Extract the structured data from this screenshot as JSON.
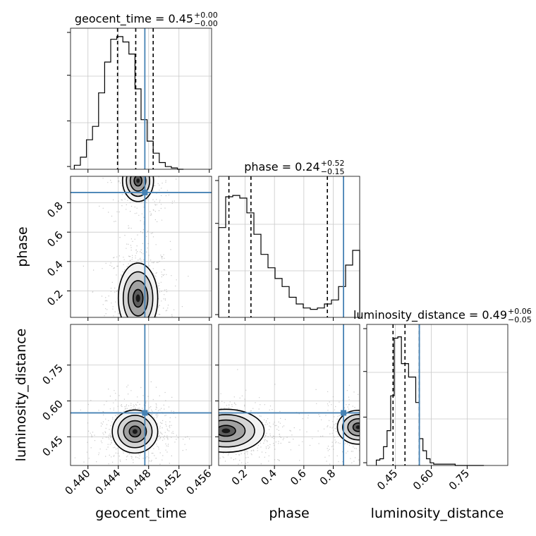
{
  "chart_data": {
    "type": "corner",
    "parameters": [
      "geocent_time",
      "phase",
      "luminosity_distance"
    ],
    "truths": {
      "geocent_time": 0.4475,
      "phase": 0.87,
      "luminosity_distance": 0.55
    },
    "colors": {
      "truth": "#4682b4",
      "hist": "#000000",
      "grid": "#c8c8c8",
      "frame": "#000000"
    },
    "titles": [
      {
        "param": "geocent_time",
        "label": "geocent_time = 0.45",
        "plus": "+0.00",
        "minus": "−0.00"
      },
      {
        "param": "phase",
        "label": "phase = 0.24",
        "plus": "+0.52",
        "minus": "−0.15"
      },
      {
        "param": "luminosity_distance",
        "label": "luminosity_distance = 0.49",
        "plus": "+0.06",
        "minus": "−0.05"
      }
    ],
    "axes": {
      "geocent_time": {
        "xlabel": "geocent_time",
        "range": [
          0.4377,
          0.4563
        ],
        "ticks": [
          0.44,
          0.444,
          0.448,
          0.452,
          0.456
        ],
        "tick_labels": [
          "0.440",
          "0.444",
          "0.448",
          "0.452",
          "0.456"
        ]
      },
      "phase": {
        "xlabel": "phase",
        "ylabel": "phase",
        "range": [
          0.02,
          0.98
        ],
        "ticks": [
          0.2,
          0.4,
          0.6,
          0.8
        ],
        "tick_labels": [
          "0.2",
          "0.4",
          "0.6",
          "0.8"
        ]
      },
      "luminosity_distance": {
        "xlabel": "luminosity_distance",
        "ylabel": "luminosity_distance",
        "range": [
          0.33,
          0.92
        ],
        "ticks": [
          0.45,
          0.6,
          0.75
        ],
        "tick_labels": [
          "0.45",
          "0.60",
          "0.75"
        ]
      }
    },
    "histograms": {
      "geocent_time": {
        "bin_edges": [
          0.4382,
          0.439,
          0.4398,
          0.4406,
          0.4414,
          0.4422,
          0.443,
          0.4438,
          0.4446,
          0.4454,
          0.4462,
          0.447,
          0.4478,
          0.4486,
          0.4494,
          0.4502,
          0.451,
          0.4518,
          0.4526
        ],
        "counts": [
          0.03,
          0.09,
          0.22,
          0.32,
          0.57,
          0.8,
          0.97,
          0.99,
          0.95,
          0.86,
          0.6,
          0.37,
          0.21,
          0.12,
          0.05,
          0.02,
          0.01,
          0.0
        ],
        "quantiles": [
          0.4439,
          0.4463,
          0.4486
        ]
      },
      "phase": {
        "bin_edges": [
          0.02,
          0.068,
          0.116,
          0.164,
          0.212,
          0.26,
          0.308,
          0.356,
          0.404,
          0.452,
          0.5,
          0.548,
          0.596,
          0.644,
          0.692,
          0.74,
          0.788,
          0.836,
          0.884,
          0.932,
          0.98
        ],
        "counts": [
          0.67,
          0.9,
          0.91,
          0.89,
          0.78,
          0.62,
          0.47,
          0.37,
          0.29,
          0.23,
          0.15,
          0.1,
          0.07,
          0.06,
          0.07,
          0.1,
          0.13,
          0.23,
          0.39,
          0.5
        ],
        "quantiles": [
          0.09,
          0.24,
          0.76
        ]
      },
      "luminosity_distance": {
        "bin_edges": [
          0.37,
          0.385,
          0.4,
          0.415,
          0.43,
          0.445,
          0.46,
          0.475,
          0.49,
          0.505,
          0.52,
          0.535,
          0.55,
          0.565,
          0.58,
          0.595,
          0.61,
          0.625,
          0.64,
          0.655,
          0.67,
          0.685,
          0.7,
          0.715,
          0.73,
          0.745,
          0.76,
          0.775,
          0.79,
          0.805,
          0.82
        ],
        "counts": [
          0.04,
          0.05,
          0.14,
          0.26,
          0.52,
          0.95,
          0.96,
          0.76,
          0.76,
          0.66,
          0.66,
          0.47,
          0.2,
          0.11,
          0.05,
          0.02,
          0.01,
          0.01,
          0.01,
          0.01,
          0.01,
          0.01,
          0.0,
          0.0,
          0.0,
          0.0,
          0.0,
          0.0,
          0.0,
          0.0
        ],
        "quantiles": [
          0.44,
          0.49,
          0.55
        ]
      }
    },
    "joint": [
      {
        "x": "geocent_time",
        "y": "phase",
        "modes": [
          {
            "center": [
              0.4466,
              0.15
            ],
            "sigma": [
              0.0013,
              0.12
            ],
            "weight": 1.0
          },
          {
            "center": [
              0.4466,
              0.95
            ],
            "sigma": [
              0.0013,
              0.09
            ],
            "weight": 0.45
          }
        ]
      },
      {
        "x": "geocent_time",
        "y": "luminosity_distance",
        "modes": [
          {
            "center": [
              0.4462,
              0.472
            ],
            "sigma": [
              0.0015,
              0.045
            ],
            "weight": 1.0
          }
        ]
      },
      {
        "x": "phase",
        "y": "luminosity_distance",
        "modes": [
          {
            "center": [
              0.07,
              0.475
            ],
            "sigma": [
              0.13,
              0.045
            ],
            "weight": 1.0
          },
          {
            "center": [
              0.97,
              0.49
            ],
            "sigma": [
              0.09,
              0.045
            ],
            "weight": 0.45
          }
        ]
      }
    ]
  }
}
